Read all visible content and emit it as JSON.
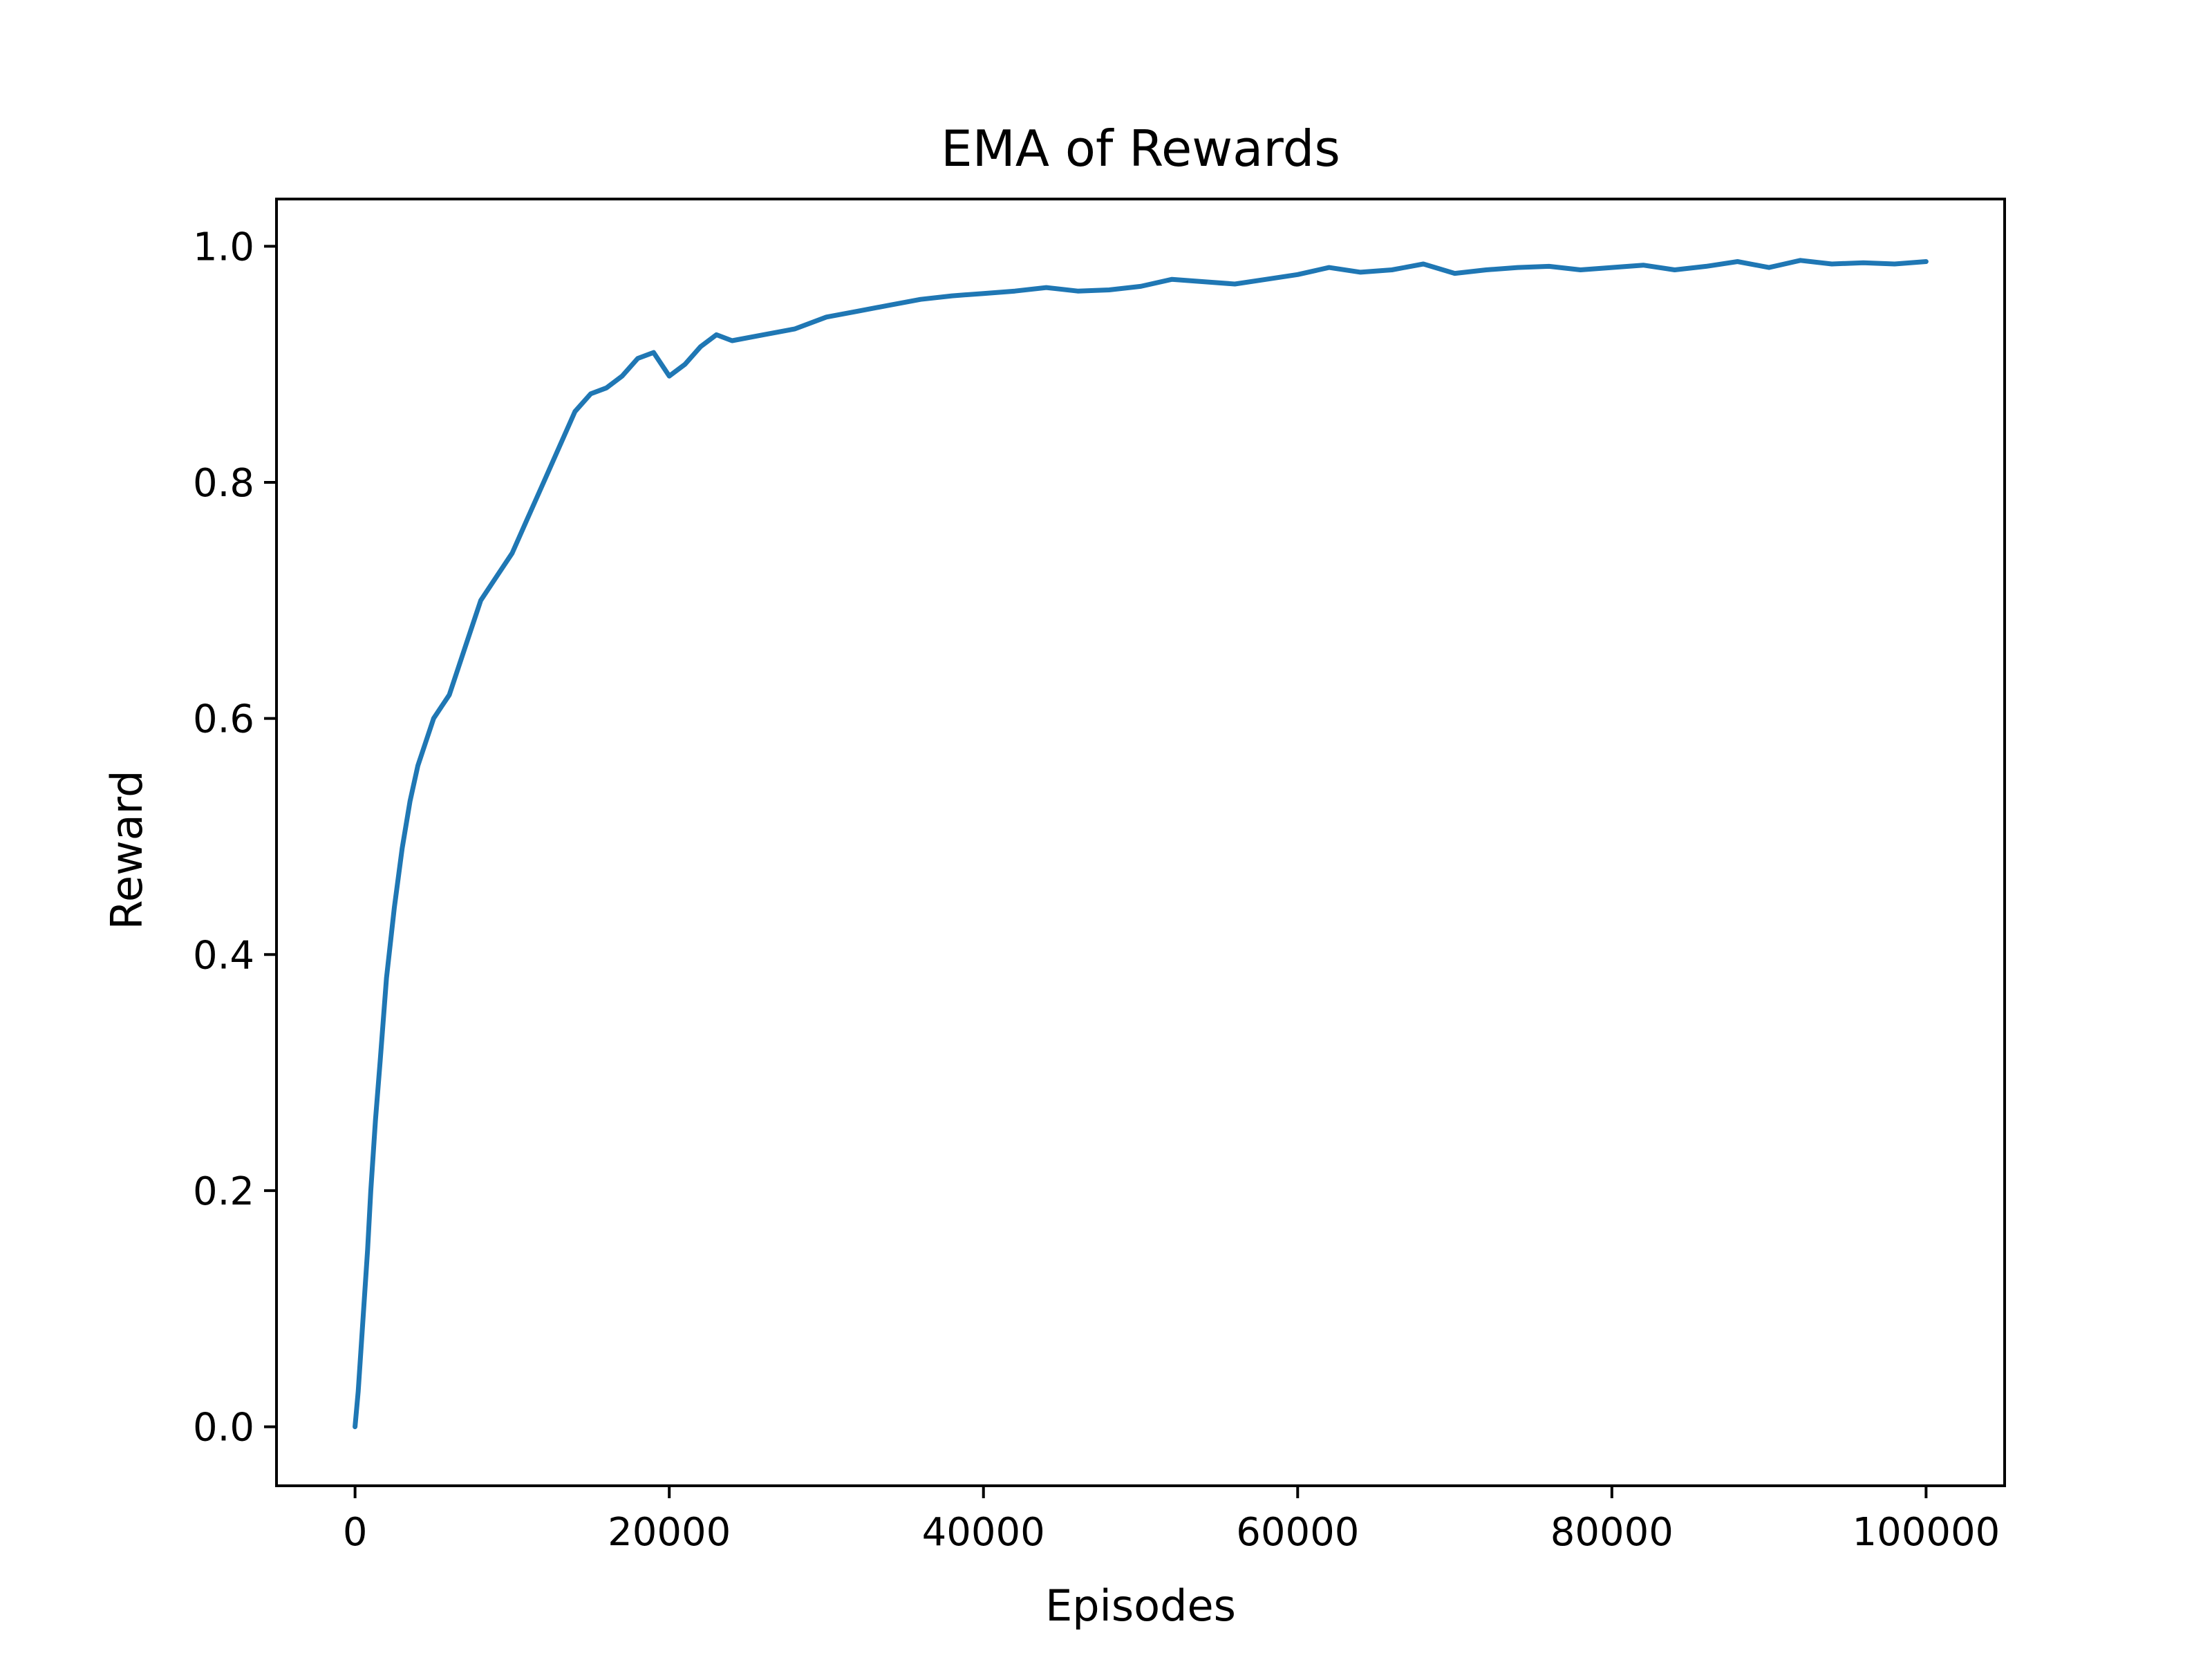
{
  "chart_data": {
    "type": "line",
    "title": "EMA of Rewards",
    "xlabel": "Episodes",
    "ylabel": "Reward",
    "xlim": [
      -5000,
      105000
    ],
    "ylim": [
      -0.05,
      1.04
    ],
    "xticks": [
      0,
      20000,
      40000,
      60000,
      80000,
      100000
    ],
    "xtick_labels": [
      "0",
      "20000",
      "40000",
      "60000",
      "80000",
      "100000"
    ],
    "yticks": [
      0.0,
      0.2,
      0.4,
      0.6,
      0.8,
      1.0
    ],
    "ytick_labels": [
      "0.0",
      "0.2",
      "0.4",
      "0.6",
      "0.8",
      "1.0"
    ],
    "grid": false,
    "line_color": "#1f77b4",
    "series": [
      {
        "x": [
          0,
          200,
          500,
          800,
          1000,
          1300,
          1600,
          2000,
          2500,
          3000,
          3500,
          4000,
          4500,
          5000,
          5500,
          6000,
          7000,
          8000,
          9000,
          10000,
          11000,
          12000,
          13000,
          14000,
          15000,
          16000,
          17000,
          18000,
          19000,
          20000,
          21000,
          22000,
          23000,
          24000,
          26000,
          28000,
          30000,
          32000,
          34000,
          36000,
          38000,
          40000,
          42000,
          44000,
          46000,
          48000,
          50000,
          52000,
          54000,
          56000,
          58000,
          60000,
          62000,
          64000,
          66000,
          68000,
          70000,
          72000,
          74000,
          76000,
          78000,
          80000,
          82000,
          84000,
          86000,
          88000,
          90000,
          92000,
          94000,
          96000,
          98000,
          100000
        ],
        "y": [
          0.0,
          0.03,
          0.09,
          0.15,
          0.2,
          0.26,
          0.31,
          0.38,
          0.44,
          0.49,
          0.53,
          0.56,
          0.58,
          0.6,
          0.61,
          0.62,
          0.66,
          0.7,
          0.72,
          0.74,
          0.77,
          0.8,
          0.83,
          0.86,
          0.875,
          0.88,
          0.89,
          0.905,
          0.91,
          0.89,
          0.9,
          0.915,
          0.925,
          0.92,
          0.925,
          0.93,
          0.94,
          0.945,
          0.95,
          0.955,
          0.958,
          0.96,
          0.962,
          0.965,
          0.962,
          0.963,
          0.966,
          0.972,
          0.97,
          0.968,
          0.972,
          0.976,
          0.982,
          0.978,
          0.98,
          0.985,
          0.977,
          0.98,
          0.982,
          0.983,
          0.98,
          0.982,
          0.984,
          0.98,
          0.983,
          0.987,
          0.982,
          0.988,
          0.985,
          0.986,
          0.985,
          0.987
        ]
      }
    ]
  }
}
